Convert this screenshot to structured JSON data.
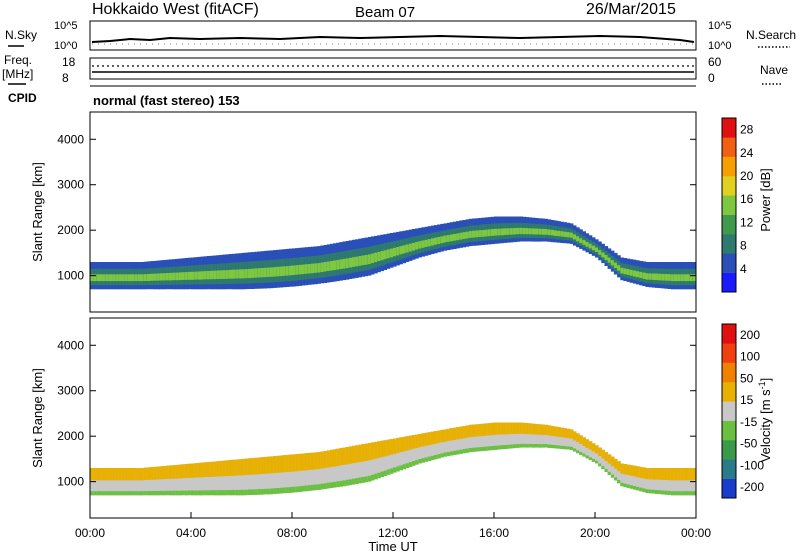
{
  "header": {
    "title": "Hokkaido West (fitACF)",
    "beam": "Beam 07",
    "date": "26/Mar/2015"
  },
  "top_panels": {
    "nsky_label": "N.Sky",
    "nsearch_label": "N.Search",
    "nsky_ticks": [
      "10^5",
      "10^0"
    ],
    "nsky_ticks_right": [
      "10^5",
      "10^0"
    ],
    "freq_label": "Freq.",
    "freq_unit": "[MHz]",
    "freq_ticks": [
      "18",
      "8"
    ],
    "nave_label": "Nave",
    "nave_ticks": [
      "60",
      "0"
    ],
    "cpid_label": "CPID",
    "cpid_text": "normal (fast stereo) 153"
  },
  "chart_data": [
    {
      "type": "heatmap",
      "panel": "power",
      "ylabel": "Slant Range [km]",
      "xlabel": "",
      "y_ticks": [
        "1000",
        "2000",
        "3000",
        "4000"
      ],
      "ylim": [
        200,
        4600
      ],
      "xlim": [
        0,
        24
      ],
      "colorbar": {
        "label": "Power [dB]",
        "ticks": [
          "4",
          "8",
          "12",
          "16",
          "20",
          "24",
          "28"
        ],
        "range": [
          0,
          30
        ],
        "colors": [
          "#1a1aff",
          "#2a4fb8",
          "#2f7a6e",
          "#3f9a4d",
          "#7ec83f",
          "#e0d020",
          "#f5a000",
          "#f06010",
          "#e01010"
        ]
      },
      "echo_band": {
        "hours": [
          0,
          1,
          2,
          3,
          4,
          5,
          6,
          7,
          8,
          9,
          10,
          11,
          12,
          13,
          14,
          15,
          16,
          17,
          18,
          19,
          20,
          21,
          22,
          23,
          24
        ],
        "lower_km": [
          700,
          700,
          700,
          700,
          700,
          700,
          700,
          720,
          760,
          820,
          900,
          1000,
          1200,
          1400,
          1550,
          1650,
          1700,
          1750,
          1750,
          1700,
          1400,
          900,
          750,
          700,
          700
        ],
        "upper_km": [
          1300,
          1300,
          1300,
          1350,
          1400,
          1450,
          1500,
          1550,
          1600,
          1650,
          1750,
          1850,
          1950,
          2050,
          2150,
          2250,
          2300,
          2300,
          2250,
          2150,
          1800,
          1400,
          1300,
          1300,
          1300
        ]
      }
    },
    {
      "type": "heatmap",
      "panel": "velocity",
      "ylabel": "Slant Range [km]",
      "xlabel": "Time UT",
      "x_ticks": [
        "00:00",
        "04:00",
        "08:00",
        "12:00",
        "16:00",
        "20:00",
        "00:00"
      ],
      "y_ticks": [
        "1000",
        "2000",
        "3000",
        "4000"
      ],
      "ylim": [
        200,
        4600
      ],
      "xlim": [
        0,
        24
      ],
      "colorbar": {
        "label": "Velocity [m s^-1]",
        "ticks": [
          "200",
          "100",
          "50",
          "15",
          "-15",
          "-50",
          "-100",
          "-200"
        ],
        "colors": [
          "#1a3ccc",
          "#2a7a8a",
          "#3a9a4a",
          "#6ac040",
          "#c8c8c8",
          "#e8b000",
          "#f08000",
          "#f04010",
          "#e01010"
        ]
      },
      "echo_band": {
        "hours": [
          0,
          1,
          2,
          3,
          4,
          5,
          6,
          7,
          8,
          9,
          10,
          11,
          12,
          13,
          14,
          15,
          16,
          17,
          18,
          19,
          20,
          21,
          22,
          23,
          24
        ],
        "lower_km": [
          700,
          700,
          700,
          700,
          700,
          700,
          700,
          720,
          760,
          820,
          900,
          1000,
          1200,
          1400,
          1550,
          1650,
          1700,
          1750,
          1750,
          1700,
          1400,
          900,
          750,
          700,
          700
        ],
        "upper_km": [
          1300,
          1300,
          1300,
          1350,
          1400,
          1450,
          1500,
          1550,
          1600,
          1650,
          1750,
          1850,
          1950,
          2050,
          2150,
          2250,
          2300,
          2300,
          2250,
          2150,
          1800,
          1400,
          1300,
          1300,
          1300
        ]
      }
    }
  ]
}
